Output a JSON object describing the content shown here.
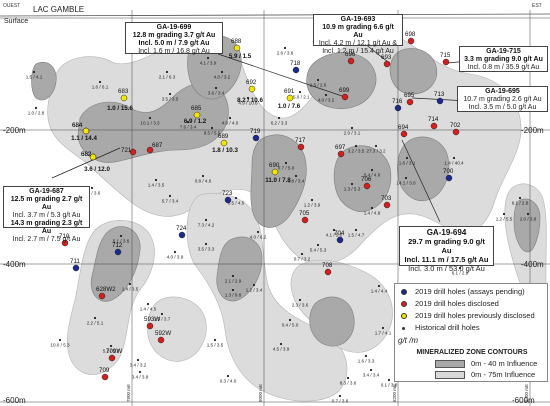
{
  "header": {
    "left_tag": "OUEST",
    "right_tag": "EST",
    "surface": "Surface",
    "lake": "LAC GAMBLE"
  },
  "depth_labels": {
    "d200_left": "-200m",
    "d200_right": "-200m",
    "d400_left": "-400m",
    "d400_right": "-400m",
    "d600_left": "-600m",
    "d600_right": "-600m"
  },
  "easting_labels": [
    "7800 mE",
    "8000 mE",
    "8200 mE",
    "8400 mE"
  ],
  "colors": {
    "pending": "#1a2a8c",
    "disclosed": "#d41f1f",
    "previous": "#f2e600",
    "historical": "#222222",
    "zone_dark": "#a8a8a8",
    "zone_light": "#d9d9d9"
  },
  "holes_pending": [
    {
      "label": "718"
    },
    {
      "label": "716"
    },
    {
      "label": "713"
    },
    {
      "label": "719"
    },
    {
      "label": "723"
    },
    {
      "label": "724"
    },
    {
      "label": "712"
    },
    {
      "label": "711"
    },
    {
      "label": "700"
    },
    {
      "label": "704"
    },
    {
      "label": "684"
    },
    {
      "label": "682"
    }
  ],
  "holes_disclosed": [
    {
      "label": "698"
    },
    {
      "label": "696"
    },
    {
      "label": "693"
    },
    {
      "label": "715"
    },
    {
      "label": "695"
    },
    {
      "label": "714"
    },
    {
      "label": "702"
    },
    {
      "label": "694"
    },
    {
      "label": "697"
    },
    {
      "label": "706"
    },
    {
      "label": "703"
    },
    {
      "label": "717"
    },
    {
      "label": "705"
    },
    {
      "label": "708"
    },
    {
      "label": "699"
    },
    {
      "label": "687"
    },
    {
      "label": "721"
    },
    {
      "label": "710"
    },
    {
      "label": "628W2"
    },
    {
      "label": "593W"
    },
    {
      "label": "592W"
    },
    {
      "label": "709W"
    },
    {
      "label": "709"
    }
  ],
  "holes_previous": [
    {
      "label": "688",
      "grade": "5.9 / 1.5"
    },
    {
      "label": "692",
      "grade": "8.2 / 10.6"
    },
    {
      "label": "691",
      "grade": "1.0 / 7.6"
    },
    {
      "label": "685",
      "grade": "6.9 / 1.2"
    },
    {
      "label": "683",
      "grade": "1.0 / 15.6"
    },
    {
      "label": "689",
      "grade": "1.8 / 10.3"
    },
    {
      "label": "690",
      "grade": "11.0 / 7.8"
    },
    {
      "label": "684",
      "grade": "1.1 / 14.4"
    },
    {
      "label": "682",
      "grade": "3.6 / 12.0"
    }
  ],
  "historical_values": [
    "2.6 / 3.6",
    "4.1 / 3.9",
    "2.1 / 6.3",
    "4.0 / 3.2",
    "3.6 / 3.4",
    "4.9 / 10.6",
    "2.5 / 2.6",
    "15.0 / 2.1",
    "4.0 / 3.2",
    "1.5 / 4.1",
    "1.6 / 6.1",
    "1.0 / 2.8",
    "3.5 / 3.5",
    "10.1 / 3.3",
    "7.6 / 3.4",
    "8.5 / 5.5",
    "4.0 / 4.0",
    "6.2 / 3.3",
    "2.0 / 3.1",
    "3.2 / 3.5",
    "27.3 / 3.2",
    "5.4 / 4.6",
    "1.6 / 3.1",
    "0.7 / 5.0",
    "0.8 / 3.4",
    "14.1 / 3.0",
    "1.4 / 40.4",
    "0.2 / 3.6",
    "1.4 / 3.5",
    "0.8 / 4.6",
    "5.7 / 3.4",
    "0.5 / 4.5",
    "1.2 / 3.9",
    "7.3 / 4.2",
    "5.1 / 3.6",
    "2.1 / 2.9",
    "1.3 / 9.8",
    "2.3 / 3.6",
    "4.0 / 3.9",
    "3.5 / 3.3",
    "4.0 / 6.2",
    "1.3 / 5.3",
    "1.4 / 4.8",
    "1.4 / 4.4",
    "1.2 / 3.4",
    "0.4 / 5.0",
    "10.0 / 5.3",
    "2.2 / 5.1",
    "1.4 / 4.5",
    "1.5 / 3.7",
    "5.2 / 5.5",
    "3.4 / 3.2",
    "1.5 / 3.5",
    "4.5 / 3.9",
    "1.7 / 4.1",
    "0.3 / 4.0",
    "1.6 / 3.3",
    "3.4 / 3.4",
    "0.1 / 3.0",
    "0.7 / 3.6",
    "8.3 / 3.6",
    "6.1 / 2.9",
    "6.1 / 2.8",
    "1.2 / 5.5",
    "2.0 / 3.8",
    "3.4 / 3.9",
    "1.4 / 3.5",
    "5.4 / 5.3",
    "4.1 / 5.0",
    "0.7 / 3.2",
    "1.5 / 4.7"
  ],
  "callouts": [
    {
      "id": "ga-19-699",
      "title": "GA-19-699",
      "line1": "12.8 m grading 3.7 g/t Au",
      "line2": "Incl. 5.0 m / 7.9 g/t Au",
      "line3": "Incl. 1.6 m / 16.8 g/t Au"
    },
    {
      "id": "ga-19-693",
      "title": "GA-19-693",
      "line1": "10.9 m grading 6.6 g/t Au",
      "line2": "Incl. 4.2 m / 12.1 g/t Au &",
      "line3": "Incl. 1.2 m / 15.4 g/t Au"
    },
    {
      "id": "ga-19-715",
      "title": "GA-19-715",
      "line1": "3.3 m grading 9.0 g/t Au",
      "line2": "Incl. 0.8 m / 35.9 g/t Au"
    },
    {
      "id": "ga-19-695",
      "title": "GA-19-695",
      "line1": "10.7 m grading 2.6 g/t Au",
      "line2": "Incl. 3.5 m / 5.0 g/t Au"
    },
    {
      "id": "ga-19-687",
      "title": "GA-19-687",
      "line1": "12.5 m grading 2.7 g/t Au",
      "line2": "Incl. 3.7 m / 5.3 g/t Au",
      "line3": "14.3 m grading 2.3 g/t Au",
      "line4": "Incl. 2.7 m / 7.5 g/t Au"
    },
    {
      "id": "ga-19-694",
      "title": "GA-19-694",
      "line1": "29.7 m grading 9.0 g/t Au",
      "line2": "Incl. 11.1 m / 17.5 g/t Au",
      "line3": "Incl. 3.0 m / 53.0 g/t Au"
    }
  ],
  "legend": {
    "pending": "2019 drill holes (assays pending)",
    "disclosed": "2019 drill holes disclosed",
    "previous": "2019 drill holes previously disclosed",
    "historical": "Historical drill holes",
    "unit": "g/t /m",
    "zones_title": "MINERALIZED ZONE CONTOURS",
    "zone_dark": "0m - 40 m Influence",
    "zone_light": "0m - 75m Influence"
  }
}
